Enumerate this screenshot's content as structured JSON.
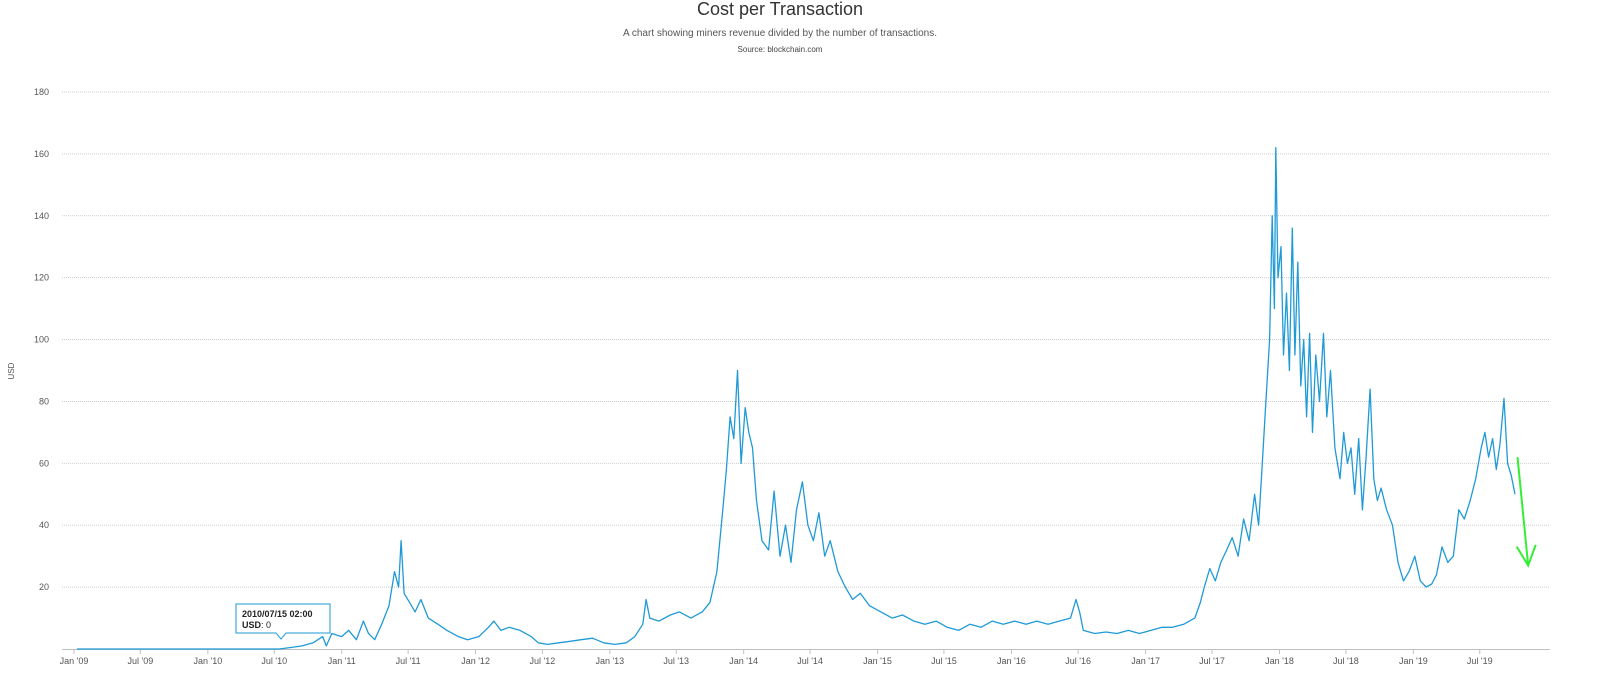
{
  "chart_data": {
    "type": "line",
    "title": "Cost per Transaction",
    "subtitle": "A chart showing miners revenue divided by the number of transactions.",
    "source": "Source: blockchain.com",
    "xlabel": "",
    "ylabel": "USD",
    "ylim": [
      0,
      180
    ],
    "xlim": [
      "2009-01-01",
      "2019-12-15"
    ],
    "y_ticks": [
      20,
      40,
      60,
      80,
      100,
      120,
      140,
      160,
      180
    ],
    "x_ticks": [
      {
        "date": "2009-01-01",
        "label": "Jan '09"
      },
      {
        "date": "2009-07-01",
        "label": "Jul '09"
      },
      {
        "date": "2010-01-01",
        "label": "Jan '10"
      },
      {
        "date": "2010-07-01",
        "label": "Jul '10"
      },
      {
        "date": "2011-01-01",
        "label": "Jan '11"
      },
      {
        "date": "2011-07-01",
        "label": "Jul '11"
      },
      {
        "date": "2012-01-01",
        "label": "Jan '12"
      },
      {
        "date": "2012-07-01",
        "label": "Jul '12"
      },
      {
        "date": "2013-01-01",
        "label": "Jan '13"
      },
      {
        "date": "2013-07-01",
        "label": "Jul '13"
      },
      {
        "date": "2014-01-01",
        "label": "Jan '14"
      },
      {
        "date": "2014-07-01",
        "label": "Jul '14"
      },
      {
        "date": "2015-01-01",
        "label": "Jan '15"
      },
      {
        "date": "2015-07-01",
        "label": "Jul '15"
      },
      {
        "date": "2016-01-01",
        "label": "Jan '16"
      },
      {
        "date": "2016-07-01",
        "label": "Jul '16"
      },
      {
        "date": "2017-01-01",
        "label": "Jan '17"
      },
      {
        "date": "2017-07-01",
        "label": "Jul '17"
      },
      {
        "date": "2018-01-01",
        "label": "Jan '18"
      },
      {
        "date": "2018-07-01",
        "label": "Jul '18"
      },
      {
        "date": "2019-01-01",
        "label": "Jan '19"
      },
      {
        "date": "2019-07-01",
        "label": "Jul '19"
      }
    ],
    "grid": true,
    "legend": "none",
    "series": [
      {
        "color": "#1f9ad6",
        "points": [
          [
            "2009-01-09",
            0
          ],
          [
            "2010-07-15",
            0
          ],
          [
            "2010-08-15",
            0.5
          ],
          [
            "2010-09-15",
            1
          ],
          [
            "2010-10-15",
            2
          ],
          [
            "2010-11-10",
            4
          ],
          [
            "2010-11-20",
            1
          ],
          [
            "2010-12-05",
            5
          ],
          [
            "2011-01-01",
            4
          ],
          [
            "2011-01-20",
            6
          ],
          [
            "2011-02-10",
            3
          ],
          [
            "2011-03-01",
            9
          ],
          [
            "2011-03-15",
            5
          ],
          [
            "2011-04-01",
            3
          ],
          [
            "2011-04-20",
            8
          ],
          [
            "2011-05-10",
            14
          ],
          [
            "2011-05-25",
            25
          ],
          [
            "2011-06-05",
            20
          ],
          [
            "2011-06-12",
            35
          ],
          [
            "2011-06-20",
            18
          ],
          [
            "2011-07-05",
            15
          ],
          [
            "2011-07-20",
            12
          ],
          [
            "2011-08-05",
            16
          ],
          [
            "2011-08-25",
            10
          ],
          [
            "2011-09-20",
            8
          ],
          [
            "2011-10-15",
            6
          ],
          [
            "2011-11-15",
            4
          ],
          [
            "2011-12-10",
            3
          ],
          [
            "2012-01-10",
            4
          ],
          [
            "2012-02-05",
            7
          ],
          [
            "2012-02-20",
            9
          ],
          [
            "2012-03-10",
            6
          ],
          [
            "2012-04-01",
            7
          ],
          [
            "2012-05-01",
            6
          ],
          [
            "2012-06-01",
            4
          ],
          [
            "2012-06-20",
            2
          ],
          [
            "2012-07-15",
            1.5
          ],
          [
            "2012-08-15",
            2
          ],
          [
            "2012-09-15",
            2.5
          ],
          [
            "2012-10-15",
            3
          ],
          [
            "2012-11-15",
            3.5
          ],
          [
            "2012-12-15",
            2
          ],
          [
            "2013-01-15",
            1.5
          ],
          [
            "2013-02-15",
            2
          ],
          [
            "2013-03-10",
            4
          ],
          [
            "2013-04-01",
            8
          ],
          [
            "2013-04-10",
            16
          ],
          [
            "2013-04-20",
            10
          ],
          [
            "2013-05-15",
            9
          ],
          [
            "2013-06-15",
            11
          ],
          [
            "2013-07-10",
            12
          ],
          [
            "2013-08-10",
            10
          ],
          [
            "2013-09-10",
            12
          ],
          [
            "2013-10-01",
            15
          ],
          [
            "2013-10-20",
            25
          ],
          [
            "2013-11-05",
            45
          ],
          [
            "2013-11-15",
            58
          ],
          [
            "2013-11-25",
            75
          ],
          [
            "2013-12-05",
            68
          ],
          [
            "2013-12-15",
            90
          ],
          [
            "2013-12-25",
            60
          ],
          [
            "2014-01-05",
            78
          ],
          [
            "2014-01-15",
            70
          ],
          [
            "2014-01-25",
            65
          ],
          [
            "2014-02-05",
            48
          ],
          [
            "2014-02-20",
            35
          ],
          [
            "2014-03-10",
            32
          ],
          [
            "2014-03-25",
            51
          ],
          [
            "2014-04-10",
            30
          ],
          [
            "2014-04-25",
            40
          ],
          [
            "2014-05-10",
            28
          ],
          [
            "2014-05-25",
            45
          ],
          [
            "2014-06-10",
            54
          ],
          [
            "2014-06-25",
            40
          ],
          [
            "2014-07-10",
            35
          ],
          [
            "2014-07-25",
            44
          ],
          [
            "2014-08-10",
            30
          ],
          [
            "2014-08-25",
            35
          ],
          [
            "2014-09-15",
            25
          ],
          [
            "2014-10-05",
            20
          ],
          [
            "2014-10-25",
            16
          ],
          [
            "2014-11-15",
            18
          ],
          [
            "2014-12-10",
            14
          ],
          [
            "2015-01-10",
            12
          ],
          [
            "2015-02-10",
            10
          ],
          [
            "2015-03-10",
            11
          ],
          [
            "2015-04-10",
            9
          ],
          [
            "2015-05-10",
            8
          ],
          [
            "2015-06-10",
            9
          ],
          [
            "2015-07-10",
            7
          ],
          [
            "2015-08-10",
            6
          ],
          [
            "2015-09-10",
            8
          ],
          [
            "2015-10-10",
            7
          ],
          [
            "2015-11-10",
            9
          ],
          [
            "2015-12-10",
            8
          ],
          [
            "2016-01-10",
            9
          ],
          [
            "2016-02-10",
            8
          ],
          [
            "2016-03-10",
            9
          ],
          [
            "2016-04-10",
            8
          ],
          [
            "2016-05-10",
            9
          ],
          [
            "2016-06-10",
            10
          ],
          [
            "2016-06-25",
            16
          ],
          [
            "2016-07-05",
            12
          ],
          [
            "2016-07-15",
            6
          ],
          [
            "2016-08-15",
            5
          ],
          [
            "2016-09-15",
            5.5
          ],
          [
            "2016-10-15",
            5
          ],
          [
            "2016-11-15",
            6
          ],
          [
            "2016-12-15",
            5
          ],
          [
            "2017-01-15",
            6
          ],
          [
            "2017-02-15",
            7
          ],
          [
            "2017-03-15",
            7
          ],
          [
            "2017-04-15",
            8
          ],
          [
            "2017-05-15",
            10
          ],
          [
            "2017-05-30",
            15
          ],
          [
            "2017-06-10",
            20
          ],
          [
            "2017-06-25",
            26
          ],
          [
            "2017-07-10",
            22
          ],
          [
            "2017-07-25",
            28
          ],
          [
            "2017-08-10",
            32
          ],
          [
            "2017-08-25",
            36
          ],
          [
            "2017-09-10",
            30
          ],
          [
            "2017-09-25",
            42
          ],
          [
            "2017-10-10",
            35
          ],
          [
            "2017-10-25",
            50
          ],
          [
            "2017-11-05",
            40
          ],
          [
            "2017-11-15",
            60
          ],
          [
            "2017-11-25",
            80
          ],
          [
            "2017-12-05",
            100
          ],
          [
            "2017-12-12",
            140
          ],
          [
            "2017-12-18",
            110
          ],
          [
            "2017-12-22",
            162
          ],
          [
            "2017-12-28",
            120
          ],
          [
            "2018-01-05",
            130
          ],
          [
            "2018-01-12",
            95
          ],
          [
            "2018-01-20",
            115
          ],
          [
            "2018-01-28",
            90
          ],
          [
            "2018-02-05",
            136
          ],
          [
            "2018-02-12",
            95
          ],
          [
            "2018-02-20",
            125
          ],
          [
            "2018-02-28",
            85
          ],
          [
            "2018-03-08",
            100
          ],
          [
            "2018-03-16",
            75
          ],
          [
            "2018-03-24",
            102
          ],
          [
            "2018-04-01",
            70
          ],
          [
            "2018-04-10",
            95
          ],
          [
            "2018-04-20",
            80
          ],
          [
            "2018-05-01",
            102
          ],
          [
            "2018-05-10",
            75
          ],
          [
            "2018-05-20",
            90
          ],
          [
            "2018-06-01",
            65
          ],
          [
            "2018-06-15",
            55
          ],
          [
            "2018-06-25",
            70
          ],
          [
            "2018-07-05",
            60
          ],
          [
            "2018-07-15",
            65
          ],
          [
            "2018-07-25",
            50
          ],
          [
            "2018-08-05",
            68
          ],
          [
            "2018-08-15",
            45
          ],
          [
            "2018-08-25",
            62
          ],
          [
            "2018-09-05",
            84
          ],
          [
            "2018-09-15",
            55
          ],
          [
            "2018-09-25",
            48
          ],
          [
            "2018-10-05",
            52
          ],
          [
            "2018-10-20",
            45
          ],
          [
            "2018-11-05",
            40
          ],
          [
            "2018-11-20",
            28
          ],
          [
            "2018-12-05",
            22
          ],
          [
            "2018-12-20",
            25
          ],
          [
            "2019-01-05",
            30
          ],
          [
            "2019-01-20",
            22
          ],
          [
            "2019-02-05",
            20
          ],
          [
            "2019-02-20",
            21
          ],
          [
            "2019-03-05",
            24
          ],
          [
            "2019-03-20",
            33
          ],
          [
            "2019-04-05",
            28
          ],
          [
            "2019-04-20",
            30
          ],
          [
            "2019-05-05",
            45
          ],
          [
            "2019-05-20",
            42
          ],
          [
            "2019-06-05",
            48
          ],
          [
            "2019-06-20",
            55
          ],
          [
            "2019-07-05",
            65
          ],
          [
            "2019-07-15",
            70
          ],
          [
            "2019-07-25",
            62
          ],
          [
            "2019-08-05",
            68
          ],
          [
            "2019-08-15",
            58
          ],
          [
            "2019-08-25",
            66
          ],
          [
            "2019-09-05",
            81
          ],
          [
            "2019-09-15",
            60
          ],
          [
            "2019-09-25",
            56
          ],
          [
            "2019-10-05",
            50
          ]
        ]
      }
    ],
    "tooltip": {
      "date": "2010/07/15 02:00",
      "series_label": "USD",
      "value_text": ": 0"
    },
    "annotation": {
      "type": "arrow",
      "color": "#33ee33",
      "from": [
        "2019-10-12",
        62
      ],
      "to": [
        "2019-11-10",
        27
      ]
    }
  }
}
